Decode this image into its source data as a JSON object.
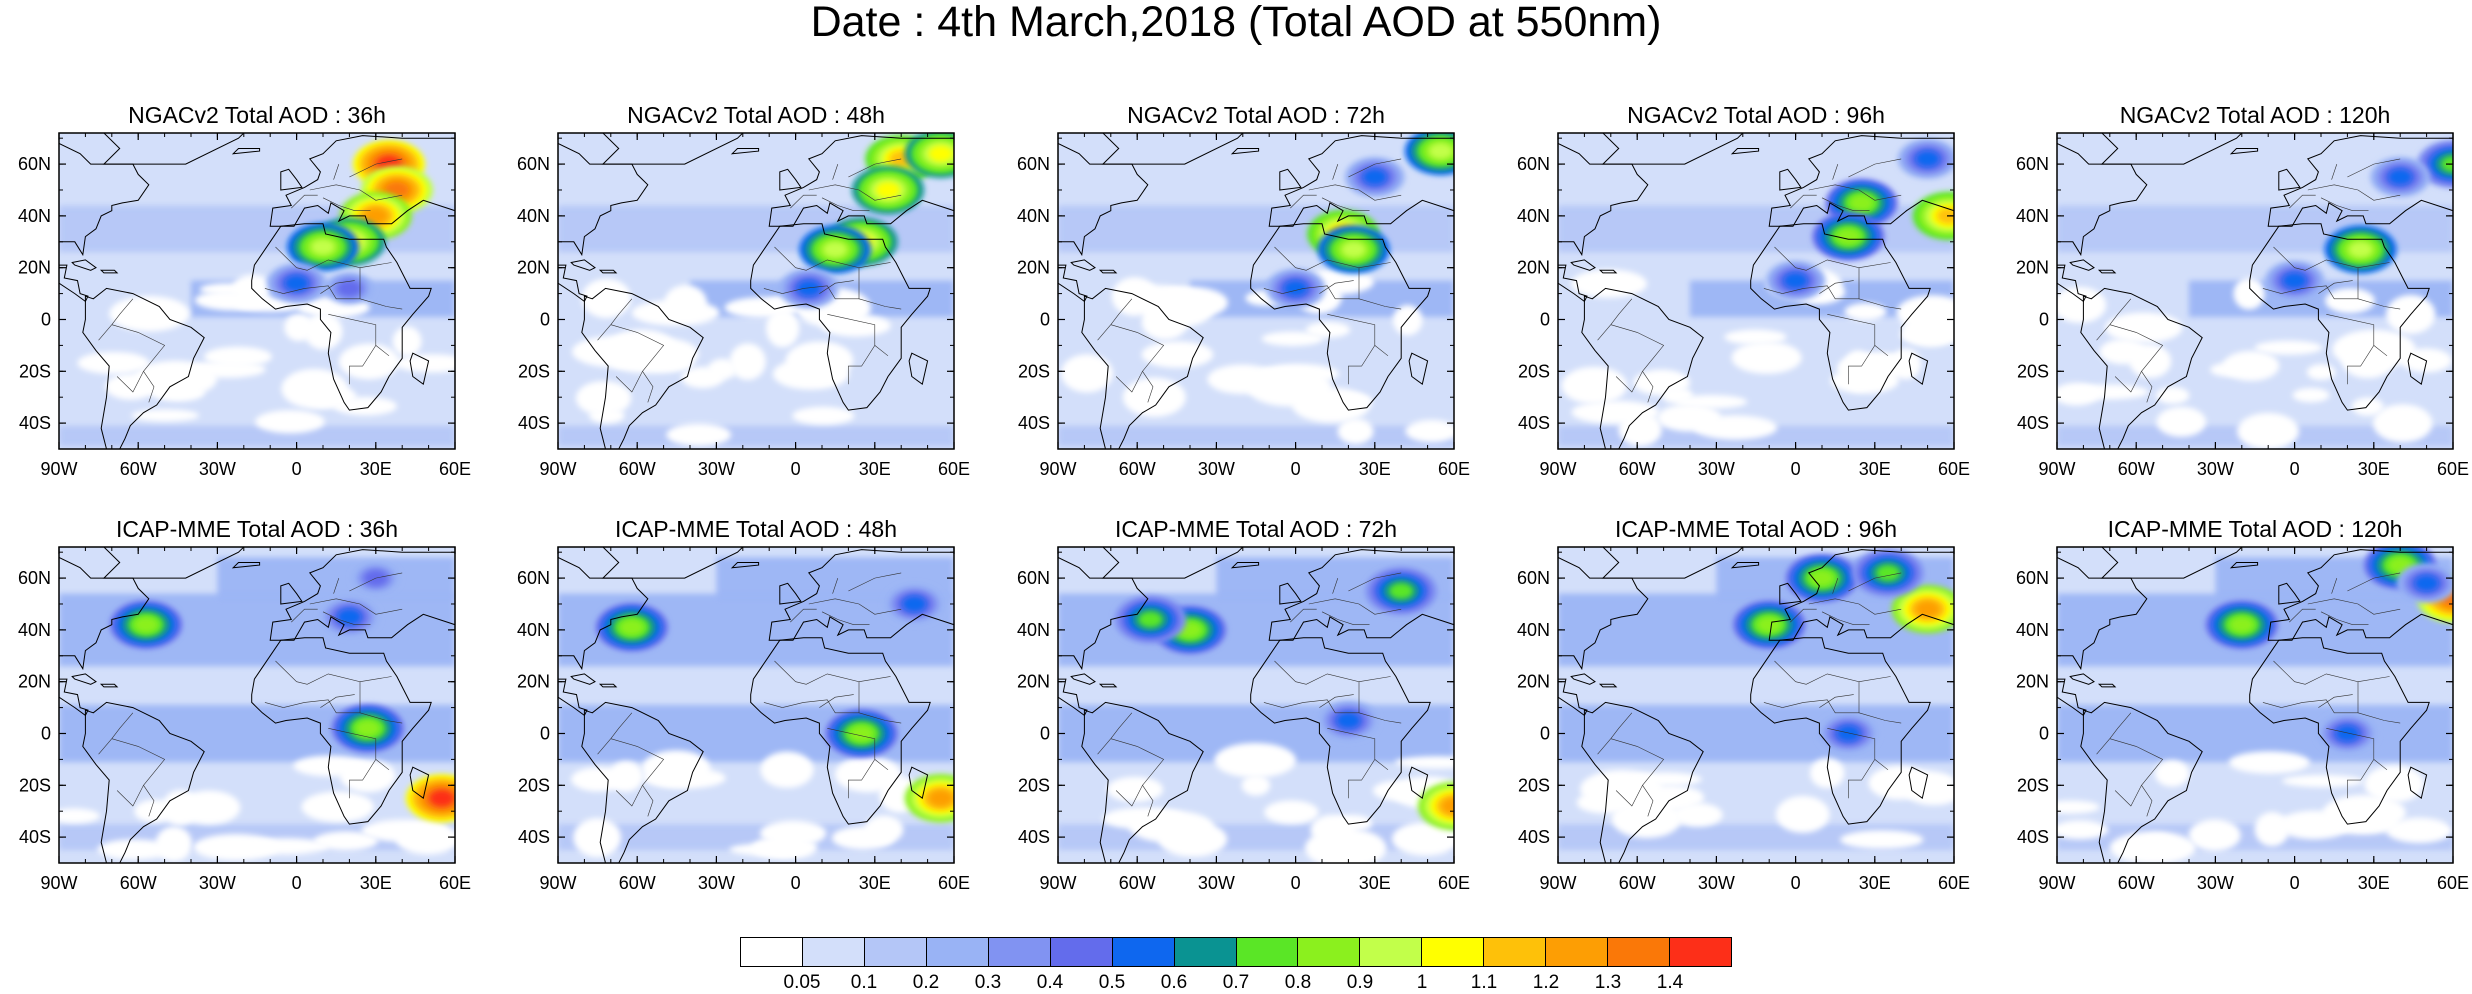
{
  "title": "Date : 4th March,2018 (Total AOD at 550nm)",
  "lat_ticks": [
    "60N",
    "40N",
    "20N",
    "0",
    "20S",
    "40S"
  ],
  "lon_ticks": [
    "90W",
    "60W",
    "30W",
    "0",
    "30E",
    "60E"
  ],
  "colors": {
    "background": "#ffffff",
    "ocean_low": "#d6e1fb",
    "continent_outline": "#000000"
  },
  "colorbar": {
    "colors": [
      "#ffffff",
      "#d3dffa",
      "#b4c6f7",
      "#99b3f5",
      "#8193f2",
      "#636cec",
      "#0e67ef",
      "#0a9392",
      "#5ae626",
      "#8bf01e",
      "#c2ff4a",
      "#ffff00",
      "#fec109",
      "#fd9e04",
      "#fa7808",
      "#fd2f18"
    ],
    "labels": [
      "0.05",
      "0.1",
      "0.2",
      "0.3",
      "0.4",
      "0.5",
      "0.6",
      "0.7",
      "0.8",
      "0.9",
      "1",
      "1.1",
      "1.2",
      "1.3",
      "1.4"
    ]
  },
  "panels": [
    {
      "title": "NGACv2 Total AOD : 36h",
      "model": "NGACv2",
      "lead": "36h",
      "hotspots": [
        {
          "lon": 35,
          "lat": 60,
          "c": 15
        },
        {
          "lon": 38,
          "lat": 50,
          "c": 14
        },
        {
          "lon": 30,
          "lat": 40,
          "c": 13
        },
        {
          "lon": 20,
          "lat": 30,
          "c": 11
        },
        {
          "lon": 10,
          "lat": 28,
          "c": 10
        },
        {
          "lon": 0,
          "lat": 14,
          "c": 6
        },
        {
          "lon": 20,
          "lat": 12,
          "c": 5
        }
      ]
    },
    {
      "title": "NGACv2 Total AOD : 48h",
      "model": "NGACv2",
      "lead": "48h",
      "hotspots": [
        {
          "lon": 40,
          "lat": 62,
          "c": 12
        },
        {
          "lon": 55,
          "lat": 64,
          "c": 11
        },
        {
          "lon": 35,
          "lat": 50,
          "c": 11
        },
        {
          "lon": 25,
          "lat": 30,
          "c": 11
        },
        {
          "lon": 15,
          "lat": 27,
          "c": 10
        },
        {
          "lon": 5,
          "lat": 12,
          "c": 6
        }
      ]
    },
    {
      "title": "NGACv2 Total AOD : 72h",
      "model": "NGACv2",
      "lead": "72h",
      "hotspots": [
        {
          "lon": 55,
          "lat": 65,
          "c": 10
        },
        {
          "lon": 18,
          "lat": 33,
          "c": 12
        },
        {
          "lon": 22,
          "lat": 27,
          "c": 10
        },
        {
          "lon": 0,
          "lat": 12,
          "c": 6
        },
        {
          "lon": 30,
          "lat": 55,
          "c": 6
        }
      ]
    },
    {
      "title": "NGACv2 Total AOD : 96h",
      "model": "NGACv2",
      "lead": "96h",
      "hotspots": [
        {
          "lon": 25,
          "lat": 45,
          "c": 9
        },
        {
          "lon": 20,
          "lat": 32,
          "c": 9
        },
        {
          "lon": 58,
          "lat": 40,
          "c": 12
        },
        {
          "lon": 50,
          "lat": 62,
          "c": 6
        },
        {
          "lon": 0,
          "lat": 15,
          "c": 6
        }
      ]
    },
    {
      "title": "NGACv2 Total AOD : 120h",
      "model": "NGACv2",
      "lead": "120h",
      "hotspots": [
        {
          "lon": 25,
          "lat": 27,
          "c": 10
        },
        {
          "lon": 60,
          "lat": 60,
          "c": 8
        },
        {
          "lon": 0,
          "lat": 15,
          "c": 6
        },
        {
          "lon": 40,
          "lat": 55,
          "c": 6
        }
      ]
    },
    {
      "title": "ICAP-MME Total AOD : 36h",
      "model": "ICAP-MME",
      "lead": "36h",
      "hotspots": [
        {
          "lon": -57,
          "lat": 42,
          "c": 9
        },
        {
          "lon": 27,
          "lat": 2,
          "c": 9
        },
        {
          "lon": 55,
          "lat": -25,
          "c": 15
        },
        {
          "lon": 20,
          "lat": 45,
          "c": 6
        },
        {
          "lon": 30,
          "lat": 60,
          "c": 5
        }
      ]
    },
    {
      "title": "ICAP-MME Total AOD : 48h",
      "model": "ICAP-MME",
      "lead": "48h",
      "hotspots": [
        {
          "lon": -62,
          "lat": 41,
          "c": 9
        },
        {
          "lon": 25,
          "lat": 0,
          "c": 9
        },
        {
          "lon": 55,
          "lat": -25,
          "c": 13
        },
        {
          "lon": 45,
          "lat": 50,
          "c": 6
        }
      ]
    },
    {
      "title": "ICAP-MME Total AOD : 72h",
      "model": "ICAP-MME",
      "lead": "72h",
      "hotspots": [
        {
          "lon": -40,
          "lat": 40,
          "c": 9
        },
        {
          "lon": -55,
          "lat": 44,
          "c": 8
        },
        {
          "lon": 60,
          "lat": -28,
          "c": 13
        },
        {
          "lon": 40,
          "lat": 55,
          "c": 8
        },
        {
          "lon": 20,
          "lat": 5,
          "c": 6
        }
      ]
    },
    {
      "title": "ICAP-MME Total AOD : 96h",
      "model": "ICAP-MME",
      "lead": "96h",
      "hotspots": [
        {
          "lon": -10,
          "lat": 42,
          "c": 9
        },
        {
          "lon": 10,
          "lat": 60,
          "c": 9
        },
        {
          "lon": 50,
          "lat": 48,
          "c": 13
        },
        {
          "lon": 35,
          "lat": 62,
          "c": 8
        },
        {
          "lon": 20,
          "lat": 0,
          "c": 6
        }
      ]
    },
    {
      "title": "ICAP-MME Total AOD : 120h",
      "model": "ICAP-MME",
      "lead": "120h",
      "hotspots": [
        {
          "lon": 60,
          "lat": 52,
          "c": 14
        },
        {
          "lon": 40,
          "lat": 65,
          "c": 9
        },
        {
          "lon": -20,
          "lat": 42,
          "c": 9
        },
        {
          "lon": 50,
          "lat": 58,
          "c": 6
        },
        {
          "lon": 20,
          "lat": 0,
          "c": 6
        }
      ]
    }
  ]
}
